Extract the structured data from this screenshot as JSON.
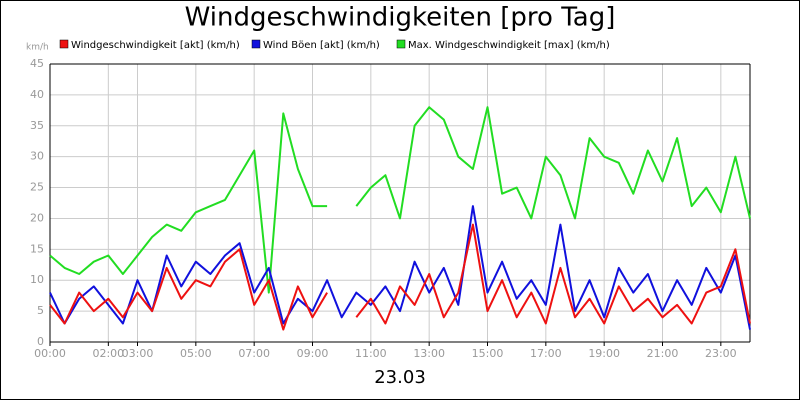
{
  "chart_data": {
    "type": "line",
    "title": "Windgeschwindigkeiten [pro Tag]",
    "y_label": "km/h",
    "x_label": "23.03",
    "x": [
      0,
      0.5,
      1,
      1.5,
      2,
      2.5,
      3,
      3.5,
      4,
      4.5,
      5,
      5.5,
      6,
      6.5,
      7,
      7.5,
      8,
      8.5,
      9,
      9.5,
      10,
      10.5,
      11,
      11.5,
      12,
      12.5,
      13,
      13.5,
      14,
      14.5,
      15,
      15.5,
      16,
      16.5,
      17,
      17.5,
      18,
      18.5,
      19,
      19.5,
      20,
      20.5,
      21,
      21.5,
      22,
      22.5,
      23,
      23.5,
      24
    ],
    "xlim": [
      0,
      24
    ],
    "xticks": [
      {
        "value": 0,
        "label": "00:00"
      },
      {
        "value": 2,
        "label": "02:00"
      },
      {
        "value": 3,
        "label": "03:00"
      },
      {
        "value": 5,
        "label": "05:00"
      },
      {
        "value": 7,
        "label": "07:00"
      },
      {
        "value": 9,
        "label": "09:00"
      },
      {
        "value": 11,
        "label": "11:00"
      },
      {
        "value": 13,
        "label": "13:00"
      },
      {
        "value": 15,
        "label": "15:00"
      },
      {
        "value": 17,
        "label": "17:00"
      },
      {
        "value": 19,
        "label": "19:00"
      },
      {
        "value": 21,
        "label": "21:00"
      },
      {
        "value": 23,
        "label": "23:00"
      }
    ],
    "ylim": [
      0,
      45
    ],
    "yticks": [
      0,
      5,
      10,
      15,
      20,
      25,
      30,
      35,
      40,
      45
    ],
    "grid": true,
    "series": [
      {
        "name": "Windgeschwindigkeit [akt] (km/h)",
        "color": "#ee1111",
        "values": [
          6,
          3,
          8,
          5,
          7,
          4,
          8,
          5,
          12,
          7,
          10,
          9,
          13,
          15,
          6,
          10,
          2,
          9,
          4,
          8,
          null,
          4,
          7,
          3,
          9,
          6,
          11,
          4,
          8,
          19,
          5,
          10,
          4,
          8,
          3,
          12,
          4,
          7,
          3,
          9,
          5,
          7,
          4,
          6,
          3,
          8,
          9,
          15,
          3
        ]
      },
      {
        "name": "Wind Böen [akt] (km/h)",
        "color": "#1111dd",
        "values": [
          8,
          3,
          7,
          9,
          6,
          3,
          10,
          5,
          14,
          9,
          13,
          11,
          14,
          16,
          8,
          12,
          3,
          7,
          5,
          10,
          4,
          8,
          6,
          9,
          5,
          13,
          8,
          12,
          6,
          22,
          8,
          13,
          7,
          10,
          6,
          19,
          5,
          10,
          4,
          12,
          8,
          11,
          5,
          10,
          6,
          12,
          8,
          14,
          2
        ]
      },
      {
        "name": "Max. Windgeschwindigkeit [max] (km/h)",
        "color": "#22dd22",
        "values": [
          14,
          12,
          11,
          13,
          14,
          11,
          14,
          17,
          19,
          18,
          21,
          22,
          23,
          27,
          31,
          8,
          37,
          28,
          22,
          22,
          null,
          22,
          25,
          27,
          20,
          35,
          38,
          36,
          30,
          28,
          38,
          24,
          25,
          20,
          30,
          27,
          20,
          33,
          30,
          29,
          24,
          31,
          26,
          33,
          22,
          25,
          21,
          30,
          20
        ]
      }
    ]
  }
}
